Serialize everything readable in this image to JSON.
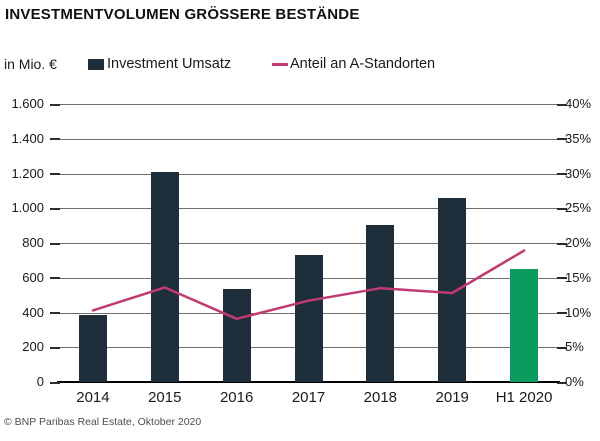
{
  "title": "INVESTMENTVOLUMEN GRÖSSERE BESTÄNDE",
  "unit_label": "in Mio. €",
  "legend": {
    "bar_label": "Investment Umsatz",
    "line_label": "Anteil an A-Standorten"
  },
  "footer": "© BNP Paribas Real Estate, Oktober 2020",
  "colors": {
    "bar": "#1e2e3a",
    "bar_highlight": "#0c9b5e",
    "line": "#c23a72",
    "grid": "#6e6e6e",
    "tick": "#2b2b2b",
    "baseline": "#000000"
  },
  "chart_data": {
    "type": "bar",
    "categories": [
      "2014",
      "2015",
      "2016",
      "2017",
      "2018",
      "2019",
      "H1 2020"
    ],
    "series": [
      {
        "name": "Investment Umsatz",
        "type": "bar",
        "axis": "left",
        "unit": "Mio. €",
        "values": [
          385,
          1210,
          535,
          730,
          905,
          1060,
          650
        ]
      },
      {
        "name": "Anteil an A-Standorten",
        "type": "line",
        "axis": "right",
        "unit": "%",
        "values": [
          10.3,
          13.6,
          9.1,
          11.7,
          13.5,
          12.8,
          18.9
        ]
      }
    ],
    "highlight_index": 6,
    "left_axis": {
      "min": 0,
      "max": 1600,
      "ticks": [
        "1.600",
        "1.400",
        "1.200",
        "1.000",
        "800",
        "600",
        "400",
        "200",
        "0"
      ]
    },
    "right_axis": {
      "min": 0,
      "max": 40,
      "ticks": [
        "40%",
        "35%",
        "30%",
        "25%",
        "20%",
        "15%",
        "10%",
        "5%",
        "0%"
      ]
    },
    "grid": true,
    "legend_position": "top"
  }
}
